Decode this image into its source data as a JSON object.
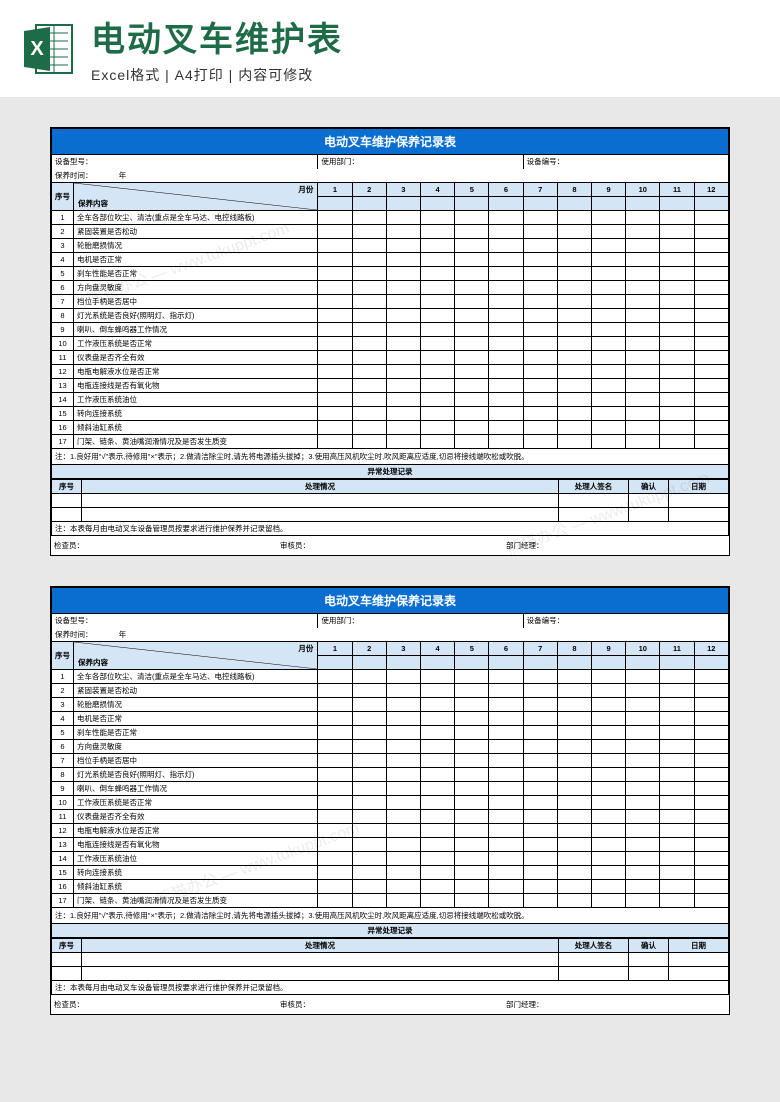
{
  "header": {
    "main_title": "电动叉车维护表",
    "subtitle": "Excel格式 | A4打印 | 内容可修改",
    "icon_name": "excel-icon",
    "icon_colors": {
      "back": "#ffffff",
      "border": "#1e6b47",
      "front": "#1e6b47",
      "letter": "#ffffff"
    }
  },
  "sheet": {
    "title": "电动叉车维护保养记录表",
    "title_bg": "#0a6ed1",
    "header_bg": "#d4e5f5",
    "info": {
      "device_type_label": "设备型号：",
      "dept_label": "使用部门：",
      "device_no_label": "设备编号：",
      "time_label": "保养时间：",
      "year_label": "年"
    },
    "grid": {
      "seq_label": "序号",
      "content_label": "保养内容",
      "month_label": "月份",
      "months": [
        "1",
        "2",
        "3",
        "4",
        "5",
        "6",
        "7",
        "8",
        "9",
        "10",
        "11",
        "12"
      ],
      "rows": [
        {
          "n": "1",
          "t": "全车各部位吹尘、清洁(重点是全车马达、电控线路板)"
        },
        {
          "n": "2",
          "t": "紧固装置是否松动"
        },
        {
          "n": "3",
          "t": "轮胎磨损情况"
        },
        {
          "n": "4",
          "t": "电机是否正常"
        },
        {
          "n": "5",
          "t": "刹车性能是否正常"
        },
        {
          "n": "6",
          "t": "方向盘灵敏度"
        },
        {
          "n": "7",
          "t": "档位手柄是否居中"
        },
        {
          "n": "8",
          "t": "灯光系统是否良好(照明灯、指示灯)"
        },
        {
          "n": "9",
          "t": "喇叭、倒车蜂鸣器工作情况"
        },
        {
          "n": "10",
          "t": "工作液压系统是否正常"
        },
        {
          "n": "11",
          "t": "仪表盘是否齐全有效"
        },
        {
          "n": "12",
          "t": "电瓶电解液水位是否正常"
        },
        {
          "n": "13",
          "t": "电瓶连接线是否有氧化物"
        },
        {
          "n": "14",
          "t": "工作液压系统油位"
        },
        {
          "n": "15",
          "t": "转向连接系统"
        },
        {
          "n": "16",
          "t": "倾斜油缸系统"
        },
        {
          "n": "17",
          "t": "门架、链条、黄油嘴润滑情况及是否发生质变"
        }
      ],
      "note": "注：1.良好用\"√\"表示,待修用\"×\"表示；2.做清洁除尘时,请先将电源插头拔掉；3.使用高压风机吹尘时,吹风距离应适度,切忌将接线端吹松或吹脱。"
    },
    "abnormal": {
      "title": "异常处理记录",
      "cols": [
        "序号",
        "处理情况",
        "处理人签名",
        "确认",
        "日期"
      ],
      "note": "注：本表每月由电动叉车设备管理员按要求进行维护保养并记录留档。"
    },
    "sign": {
      "inspector": "检查员：",
      "reviewer": "审核员：",
      "manager": "部门经理："
    }
  },
  "watermark": "熊猫办公 — www.tukuppt.com"
}
